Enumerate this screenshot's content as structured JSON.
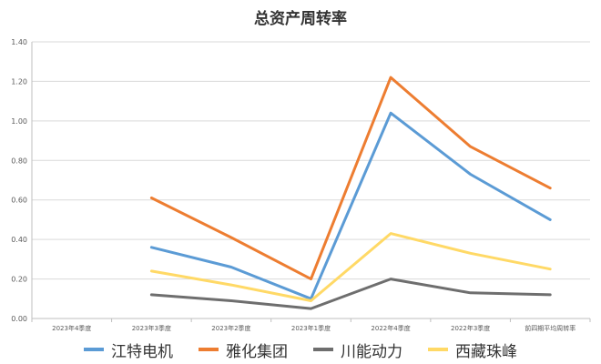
{
  "chart_data": {
    "type": "line",
    "title": "总资产周转率",
    "xlabel": "",
    "ylabel": "",
    "categories": [
      "2023年4季度",
      "2023年3季度",
      "2023年2季度",
      "2023年1季度",
      "2022年4季度",
      "2022年3季度",
      "前四期平均周转率"
    ],
    "ylim": [
      0,
      1.4
    ],
    "yticks": [
      "0.00",
      "0.20",
      "0.40",
      "0.60",
      "0.80",
      "1.00",
      "1.20",
      "1.40"
    ],
    "grid": true,
    "legend_position": "bottom",
    "series": [
      {
        "name": "江特电机",
        "color": "#5b9bd5",
        "values": [
          null,
          0.36,
          0.26,
          0.1,
          1.04,
          0.73,
          0.5
        ]
      },
      {
        "name": "雅化集团",
        "color": "#ed7d31",
        "values": [
          null,
          0.61,
          0.41,
          0.2,
          1.22,
          0.87,
          0.66
        ]
      },
      {
        "name": "川能动力",
        "color": "#6e6e6e",
        "values": [
          null,
          0.12,
          0.09,
          0.05,
          0.2,
          0.13,
          0.12
        ]
      },
      {
        "name": "西藏珠峰",
        "color": "#ffd966",
        "values": [
          null,
          0.24,
          0.17,
          0.09,
          0.43,
          0.33,
          0.25
        ]
      }
    ]
  }
}
